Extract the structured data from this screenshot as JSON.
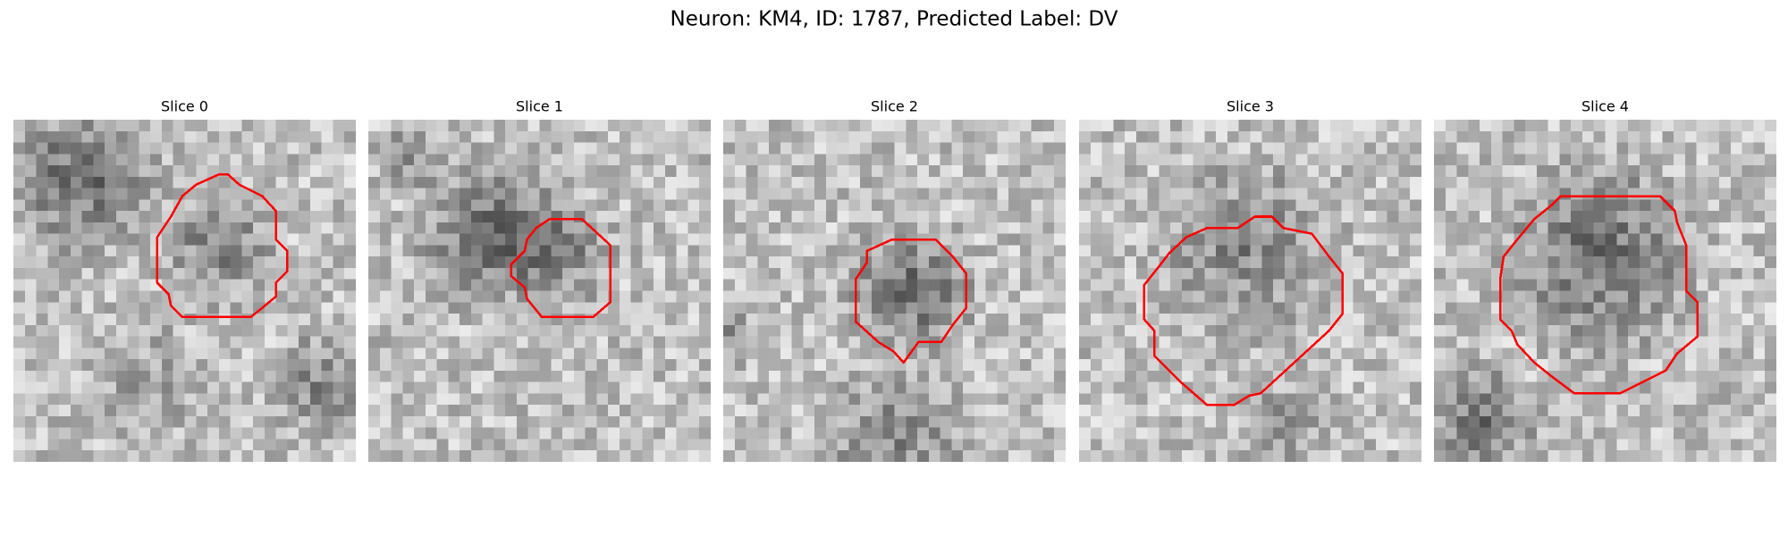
{
  "figure": {
    "title": "Neuron: KM4, ID: 1787, Predicted Label: DV",
    "panels": [
      {
        "title": "Slice 0"
      },
      {
        "title": "Slice 1"
      },
      {
        "title": "Slice 2"
      },
      {
        "title": "Slice 3"
      },
      {
        "title": "Slice 4"
      }
    ]
  }
}
